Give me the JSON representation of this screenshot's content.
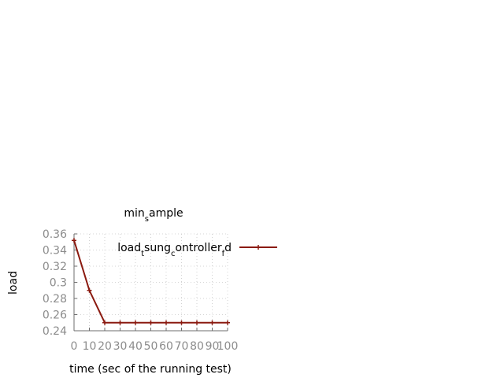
{
  "chart_data": {
    "type": "line",
    "title": "min_sample",
    "xlabel": "time (sec of the running test)",
    "ylabel": "load",
    "xlim": [
      0,
      100
    ],
    "ylim": [
      0.24,
      0.36
    ],
    "xticks": [
      0,
      10,
      20,
      30,
      40,
      50,
      60,
      70,
      80,
      90,
      100
    ],
    "yticks": [
      0.24,
      0.26,
      0.28,
      0.3,
      0.32,
      0.34,
      0.36
    ],
    "yticklabels": [
      "0.24",
      "0.26",
      "0.28",
      "0.3",
      "0.32",
      "0.34",
      "0.36"
    ],
    "grid": true,
    "legend_position": "top-right",
    "series": [
      {
        "name": "load_tsung_controller_fd",
        "color": "#8b1a10",
        "x": [
          0,
          10,
          20,
          30,
          40,
          50,
          60,
          70,
          80,
          90,
          100
        ],
        "y": [
          0.352,
          0.29,
          0.25,
          0.25,
          0.25,
          0.25,
          0.25,
          0.25,
          0.25,
          0.25,
          0.25
        ]
      }
    ]
  }
}
